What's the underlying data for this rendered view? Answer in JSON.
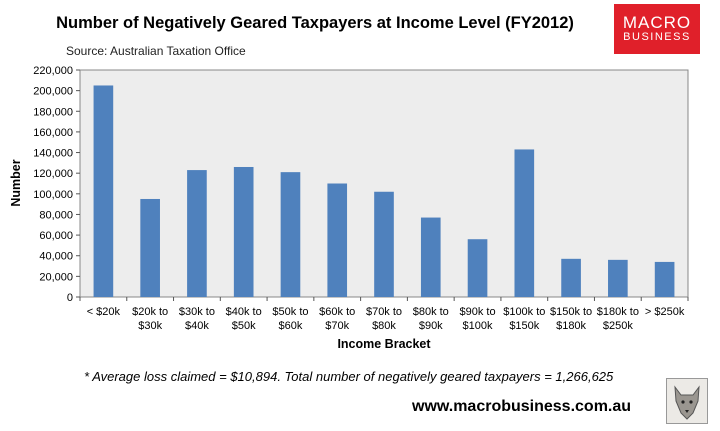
{
  "header": {
    "title": "Number of Negatively Geared Taxpayers at Income Level (FY2012)",
    "source": "Source: Australian Taxation Office"
  },
  "logo": {
    "line1": "MACRO",
    "line2": "BUSINESS",
    "color": "#e0202a"
  },
  "footer": {
    "footnote": "* Average loss claimed = $10,894. Total number of negatively geared taxpayers = 1,266,625",
    "url": "www.macrobusiness.com.au",
    "image_icon": "wolf-icon"
  },
  "chart_data": {
    "type": "bar",
    "xlabel": "Income Bracket",
    "ylabel": "Number",
    "ylim": [
      0,
      220000
    ],
    "ytick_step": 20000,
    "bar_color": "#4f81bd",
    "plot_background": "#ededed",
    "grid": false,
    "categories": [
      [
        "< $20k"
      ],
      [
        "$20k to",
        "$30k"
      ],
      [
        "$30k to",
        "$40k"
      ],
      [
        "$40k to",
        "$50k"
      ],
      [
        "$50k to",
        "$60k"
      ],
      [
        "$60k to",
        "$70k"
      ],
      [
        "$70k to",
        "$80k"
      ],
      [
        "$80k to",
        "$90k"
      ],
      [
        "$90k to",
        "$100k"
      ],
      [
        "$100k to",
        "$150k"
      ],
      [
        "$150k to",
        "$180k"
      ],
      [
        "$180k to",
        "$250k"
      ],
      [
        "> $250k"
      ]
    ],
    "values": [
      205000,
      95000,
      123000,
      126000,
      121000,
      110000,
      102000,
      77000,
      56000,
      143000,
      37000,
      36000,
      34000
    ]
  }
}
